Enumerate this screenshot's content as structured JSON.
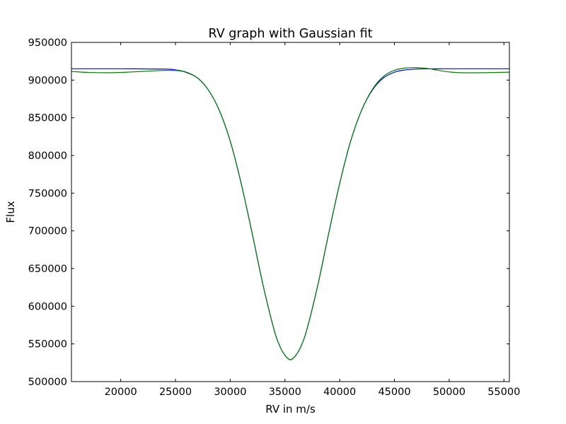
{
  "chart_data": {
    "type": "line",
    "title": "RV graph with Gaussian fit",
    "xlabel": "RV in m/s",
    "ylabel": "Flux",
    "xlim": [
      15500,
      55500
    ],
    "ylim": [
      500000,
      950000
    ],
    "xticks": [
      20000,
      25000,
      30000,
      35000,
      40000,
      45000,
      50000,
      55000
    ],
    "yticks": [
      500000,
      550000,
      600000,
      650000,
      700000,
      750000,
      800000,
      850000,
      900000,
      950000
    ],
    "grid": false,
    "legend": "none",
    "series": [
      {
        "color": "#0000ff",
        "x": [
          15500,
          20000,
          24000,
          25000,
          26000,
          27000,
          28000,
          29000,
          30000,
          31000,
          32000,
          33000,
          34000,
          34500,
          35000,
          35500,
          36000,
          36500,
          37000,
          38000,
          39000,
          40000,
          41000,
          42000,
          43000,
          44000,
          45000,
          46000,
          47000,
          48000,
          50000,
          55500
        ],
        "y": [
          915000,
          915000,
          914600,
          913500,
          910500,
          903000,
          887000,
          860000,
          819000,
          763000,
          697000,
          628000,
          569000,
          548000,
          535000,
          529000,
          535000,
          548000,
          569000,
          628000,
          697000,
          763000,
          819000,
          860000,
          887000,
          903000,
          910500,
          913500,
          914600,
          914900,
          915000,
          915000
        ]
      },
      {
        "color": "#008000",
        "x": [
          15500,
          17000,
          19000,
          21000,
          23000,
          24500,
          25500,
          26000,
          27000,
          28000,
          29000,
          30000,
          31000,
          32000,
          33000,
          34000,
          34500,
          35000,
          35500,
          36000,
          36500,
          37000,
          38000,
          39000,
          40000,
          41000,
          42000,
          43000,
          44000,
          45000,
          46000,
          47000,
          48000,
          49000,
          50000,
          51000,
          53000,
          55500
        ],
        "y": [
          911500,
          910200,
          909800,
          910800,
          912300,
          912900,
          912000,
          910000,
          903000,
          887000,
          860000,
          819000,
          763000,
          697000,
          628000,
          569000,
          548000,
          535000,
          529000,
          535000,
          548000,
          569000,
          628000,
          697000,
          763000,
          819000,
          860000,
          888000,
          905000,
          913000,
          916000,
          916500,
          915500,
          913000,
          910800,
          909800,
          909800,
          910500
        ]
      }
    ]
  }
}
